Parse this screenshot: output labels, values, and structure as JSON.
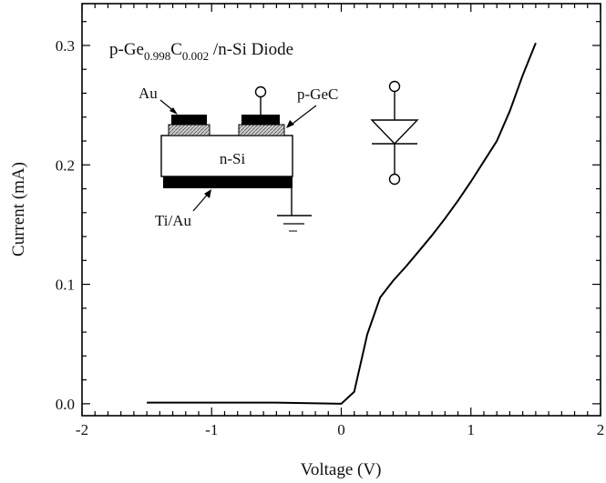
{
  "chart_data": {
    "type": "line",
    "title": "",
    "xlabel": "Voltage (V)",
    "ylabel": "Current (mA)",
    "xlim": [
      -2,
      2
    ],
    "ylim": [
      -0.01,
      0.335
    ],
    "x_ticks": [
      -2,
      -1,
      0,
      1,
      2
    ],
    "x_tick_labels": [
      "-2",
      "-1",
      "0",
      "1",
      "2"
    ],
    "y_ticks": [
      0.0,
      0.1,
      0.2,
      0.3
    ],
    "y_tick_labels": [
      "0.0",
      "0.1",
      "0.2",
      "0.3"
    ],
    "grid": false,
    "series": [
      {
        "x": [
          -1.5,
          -1.0,
          -0.5,
          0.0,
          0.1,
          0.2,
          0.3,
          0.4,
          0.5,
          0.6,
          0.7,
          0.8,
          0.9,
          1.0,
          1.1,
          1.2,
          1.3,
          1.4,
          1.5
        ],
        "y": [
          0.001,
          0.001,
          0.001,
          0.0,
          0.01,
          0.058,
          0.089,
          0.103,
          0.115,
          0.128,
          0.141,
          0.155,
          0.17,
          0.186,
          0.203,
          0.22,
          0.245,
          0.275,
          0.302
        ],
        "color": "#000000"
      }
    ],
    "annotations": {
      "inset_title_prefix": "p-Ge",
      "inset_title_sub1": "0.998",
      "inset_title_mid": "C",
      "inset_title_sub2": "0.002",
      "inset_title_suffix": " /n-Si Diode",
      "au_label": "Au",
      "pgec_label": "p-GeC",
      "nsi_label": "n-Si",
      "tiau_label": "Ti/Au"
    }
  }
}
